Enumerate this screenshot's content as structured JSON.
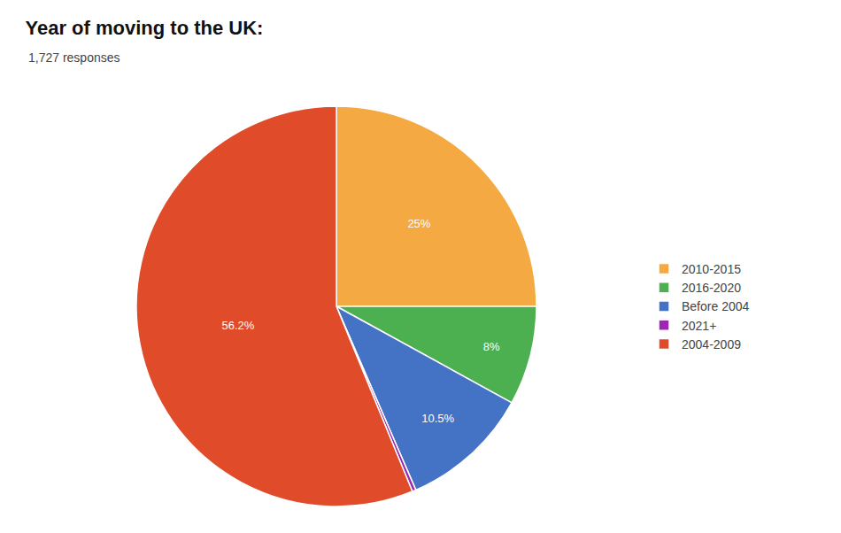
{
  "chart_data": {
    "type": "pie",
    "title": "Year of moving to the UK:",
    "subtitle": "1,727 responses",
    "categories": [
      "2010-2015",
      "2016-2020",
      "Before 2004",
      "2021+",
      "2004-2009"
    ],
    "values": [
      25.0,
      8.0,
      10.5,
      0.3,
      56.2
    ],
    "value_labels": [
      "25%",
      "8%",
      "10.5%",
      null,
      "56.2%"
    ],
    "colors": [
      "#F4A942",
      "#4CAF50",
      "#4472C4",
      "#9C27B0",
      "#E04B2A"
    ],
    "data_labels": true,
    "legend": "right"
  }
}
